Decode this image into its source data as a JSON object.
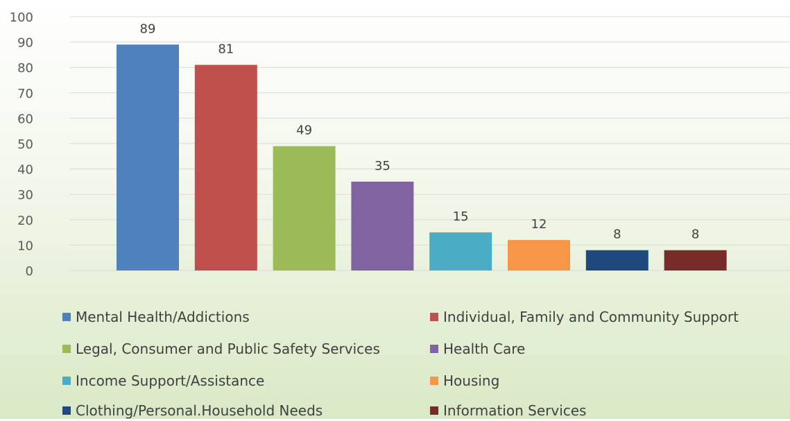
{
  "chart_data": {
    "type": "bar",
    "title": "",
    "xlabel": "",
    "ylabel": "",
    "ylim": [
      0,
      100
    ],
    "yticks": [
      0,
      10,
      20,
      30,
      40,
      50,
      60,
      70,
      80,
      90,
      100
    ],
    "grid": true,
    "legend_position": "bottom",
    "categories": [
      "Mental Health/Addictions",
      "Individual, Family and Community Support",
      "Legal, Consumer and Public Safety Services",
      "Health Care",
      "Income Support/Assistance",
      "Housing",
      "Clothing/Personal.Household Needs",
      "Information Services"
    ],
    "values": [
      89,
      81,
      49,
      35,
      15,
      12,
      8,
      8
    ],
    "colors": [
      "#4f81bd",
      "#c0504d",
      "#9bbb59",
      "#8064a2",
      "#4bacc6",
      "#f79646",
      "#1f497d",
      "#772c2a"
    ]
  }
}
